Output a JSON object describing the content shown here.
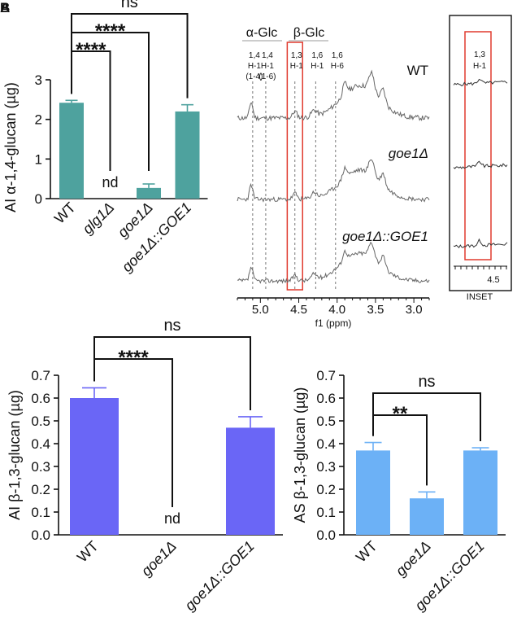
{
  "panel_labels": [
    "A",
    "B"
  ],
  "chart_data": [
    {
      "type": "bar",
      "panel": "top-left",
      "ylabel": "AI α-1,4-glucan (µg)",
      "categories": [
        "WT",
        "glg1Δ",
        "goe1Δ",
        "goe1Δ::GOE1"
      ],
      "italic": [
        false,
        true,
        true,
        true
      ],
      "values": [
        2.42,
        0,
        0.27,
        2.2
      ],
      "errors": [
        0.06,
        0,
        0.1,
        0.17
      ],
      "bar_labels": [
        "",
        "nd",
        "",
        ""
      ],
      "ylim": [
        0,
        3
      ],
      "yticks": [
        0,
        1,
        2,
        3
      ],
      "tick_labels": [
        "0",
        "1",
        "2",
        "3"
      ],
      "color": "#4ea29e",
      "significance": [
        {
          "from": 0,
          "to": 3,
          "label": "ns"
        },
        {
          "from": 0,
          "to": 2,
          "label": "****"
        },
        {
          "from": 0,
          "to": 1,
          "label": "****"
        }
      ]
    },
    {
      "type": "bar",
      "panel": "bottom-left",
      "ylabel": "AI β-1,3-glucan (µg)",
      "categories": [
        "WT",
        "goe1Δ",
        "goe1Δ::GOE1"
      ],
      "italic": [
        false,
        true,
        true
      ],
      "values": [
        0.6,
        0,
        0.47
      ],
      "errors": [
        0.045,
        0,
        0.048
      ],
      "bar_labels": [
        "",
        "nd",
        ""
      ],
      "ylim": [
        0,
        0.7
      ],
      "yticks": [
        0,
        0.1,
        0.2,
        0.3,
        0.4,
        0.5,
        0.6,
        0.7
      ],
      "tick_labels": [
        "0.0",
        "0.1",
        "0.2",
        "0.3",
        "0.4",
        "0.5",
        "0.6",
        "0.7"
      ],
      "color": "#6a66f6",
      "significance": [
        {
          "from": 0,
          "to": 2,
          "label": "ns"
        },
        {
          "from": 0,
          "to": 1,
          "label": "****"
        }
      ]
    },
    {
      "type": "bar",
      "panel": "bottom-right",
      "ylabel": "AS β-1,3-glucan (µg)",
      "categories": [
        "WT",
        "goe1Δ",
        "goe1Δ::GOE1"
      ],
      "italic": [
        false,
        true,
        true
      ],
      "values": [
        0.37,
        0.16,
        0.37
      ],
      "errors": [
        0.035,
        0.028,
        0.012
      ],
      "bar_labels": [
        "",
        "",
        ""
      ],
      "ylim": [
        0,
        0.7
      ],
      "yticks": [
        0,
        0.1,
        0.2,
        0.3,
        0.4,
        0.5,
        0.6,
        0.7
      ],
      "tick_labels": [
        "0.0",
        "0.1",
        "0.2",
        "0.3",
        "0.4",
        "0.5",
        "0.6",
        "0.7"
      ],
      "color": "#6cb1f6",
      "significance": [
        {
          "from": 0,
          "to": 2,
          "label": "ns"
        },
        {
          "from": 0,
          "to": 1,
          "label": "**"
        }
      ]
    },
    {
      "type": "line",
      "panel": "top-right-nmr",
      "xlabel": "f1 (ppm)",
      "xlim": [
        5.3,
        2.8
      ],
      "xticks": [
        5.0,
        4.5,
        4.0,
        3.5,
        3.0
      ],
      "xtick_labels": [
        "5.0",
        "4.5",
        "4.0",
        "3.5",
        "3.0"
      ],
      "group_labels": [
        "α-Glc",
        "β-Glc"
      ],
      "peaks": [
        {
          "ppm": 5.1,
          "label_lines": [
            "1,4",
            "H-1",
            "(1-4)"
          ]
        },
        {
          "ppm": 4.93,
          "label_lines": [
            "1,4",
            "H-1",
            "(1-6)"
          ]
        },
        {
          "ppm": 4.55,
          "label_lines": [
            "1,3",
            "H-1"
          ]
        },
        {
          "ppm": 4.28,
          "label_lines": [
            "1,6",
            "H-1"
          ]
        },
        {
          "ppm": 4.02,
          "label_lines": [
            "1,6",
            "H-6"
          ]
        }
      ],
      "highlight_ppm": [
        4.65,
        4.45
      ],
      "series": [
        {
          "name": "WT",
          "italic": false
        },
        {
          "name": "goe1Δ",
          "italic": true
        },
        {
          "name": "goe1Δ::GOE1",
          "italic": true
        }
      ],
      "inset": {
        "label": "INSET",
        "peak_label_lines": [
          "1,3",
          "H-1"
        ],
        "tick_label": "4.5"
      }
    }
  ]
}
